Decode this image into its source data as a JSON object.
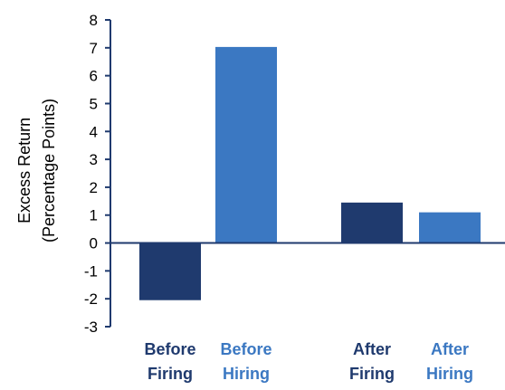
{
  "chart_data": {
    "type": "bar",
    "ylabel": [
      "Excess Return",
      "(Percentage Points)"
    ],
    "ylim": [
      -3,
      8
    ],
    "yticks": [
      8,
      7,
      6,
      5,
      4,
      3,
      2,
      1,
      0,
      -1,
      -2,
      -3
    ],
    "grid": false,
    "legend": "none",
    "categories": [
      {
        "line1": "Before",
        "line2": "Firing",
        "value": -2.05,
        "color": "#1f3a6e",
        "group": 0
      },
      {
        "line1": "Before",
        "line2": "Hiring",
        "value": 7.03,
        "color": "#3b78c2",
        "group": 0
      },
      {
        "line1": "After",
        "line2": "Firing",
        "value": 1.45,
        "color": "#1f3a6e",
        "group": 1
      },
      {
        "line1": "After",
        "line2": "Hiring",
        "value": 1.1,
        "color": "#3b78c2",
        "group": 1
      }
    ],
    "colors": {
      "firing": "#1f3a6e",
      "hiring": "#3b78c2",
      "axis": "#1f3a6e"
    }
  }
}
